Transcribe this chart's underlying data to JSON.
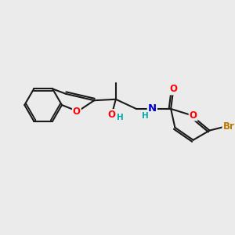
{
  "background_color": "#ebebeb",
  "bond_color": "#1a1a1a",
  "bond_width": 1.5,
  "atom_colors": {
    "O": "#ff0000",
    "N": "#0000cc",
    "Br": "#bb7700",
    "H_oh": "#00aaaa",
    "H_nh": "#00aaaa",
    "C": "#1a1a1a"
  },
  "font_size": 8.5,
  "fig_width": 3.0,
  "fig_height": 3.0,
  "dpi": 100,
  "xlim": [
    0,
    10
  ],
  "ylim": [
    0,
    10
  ]
}
